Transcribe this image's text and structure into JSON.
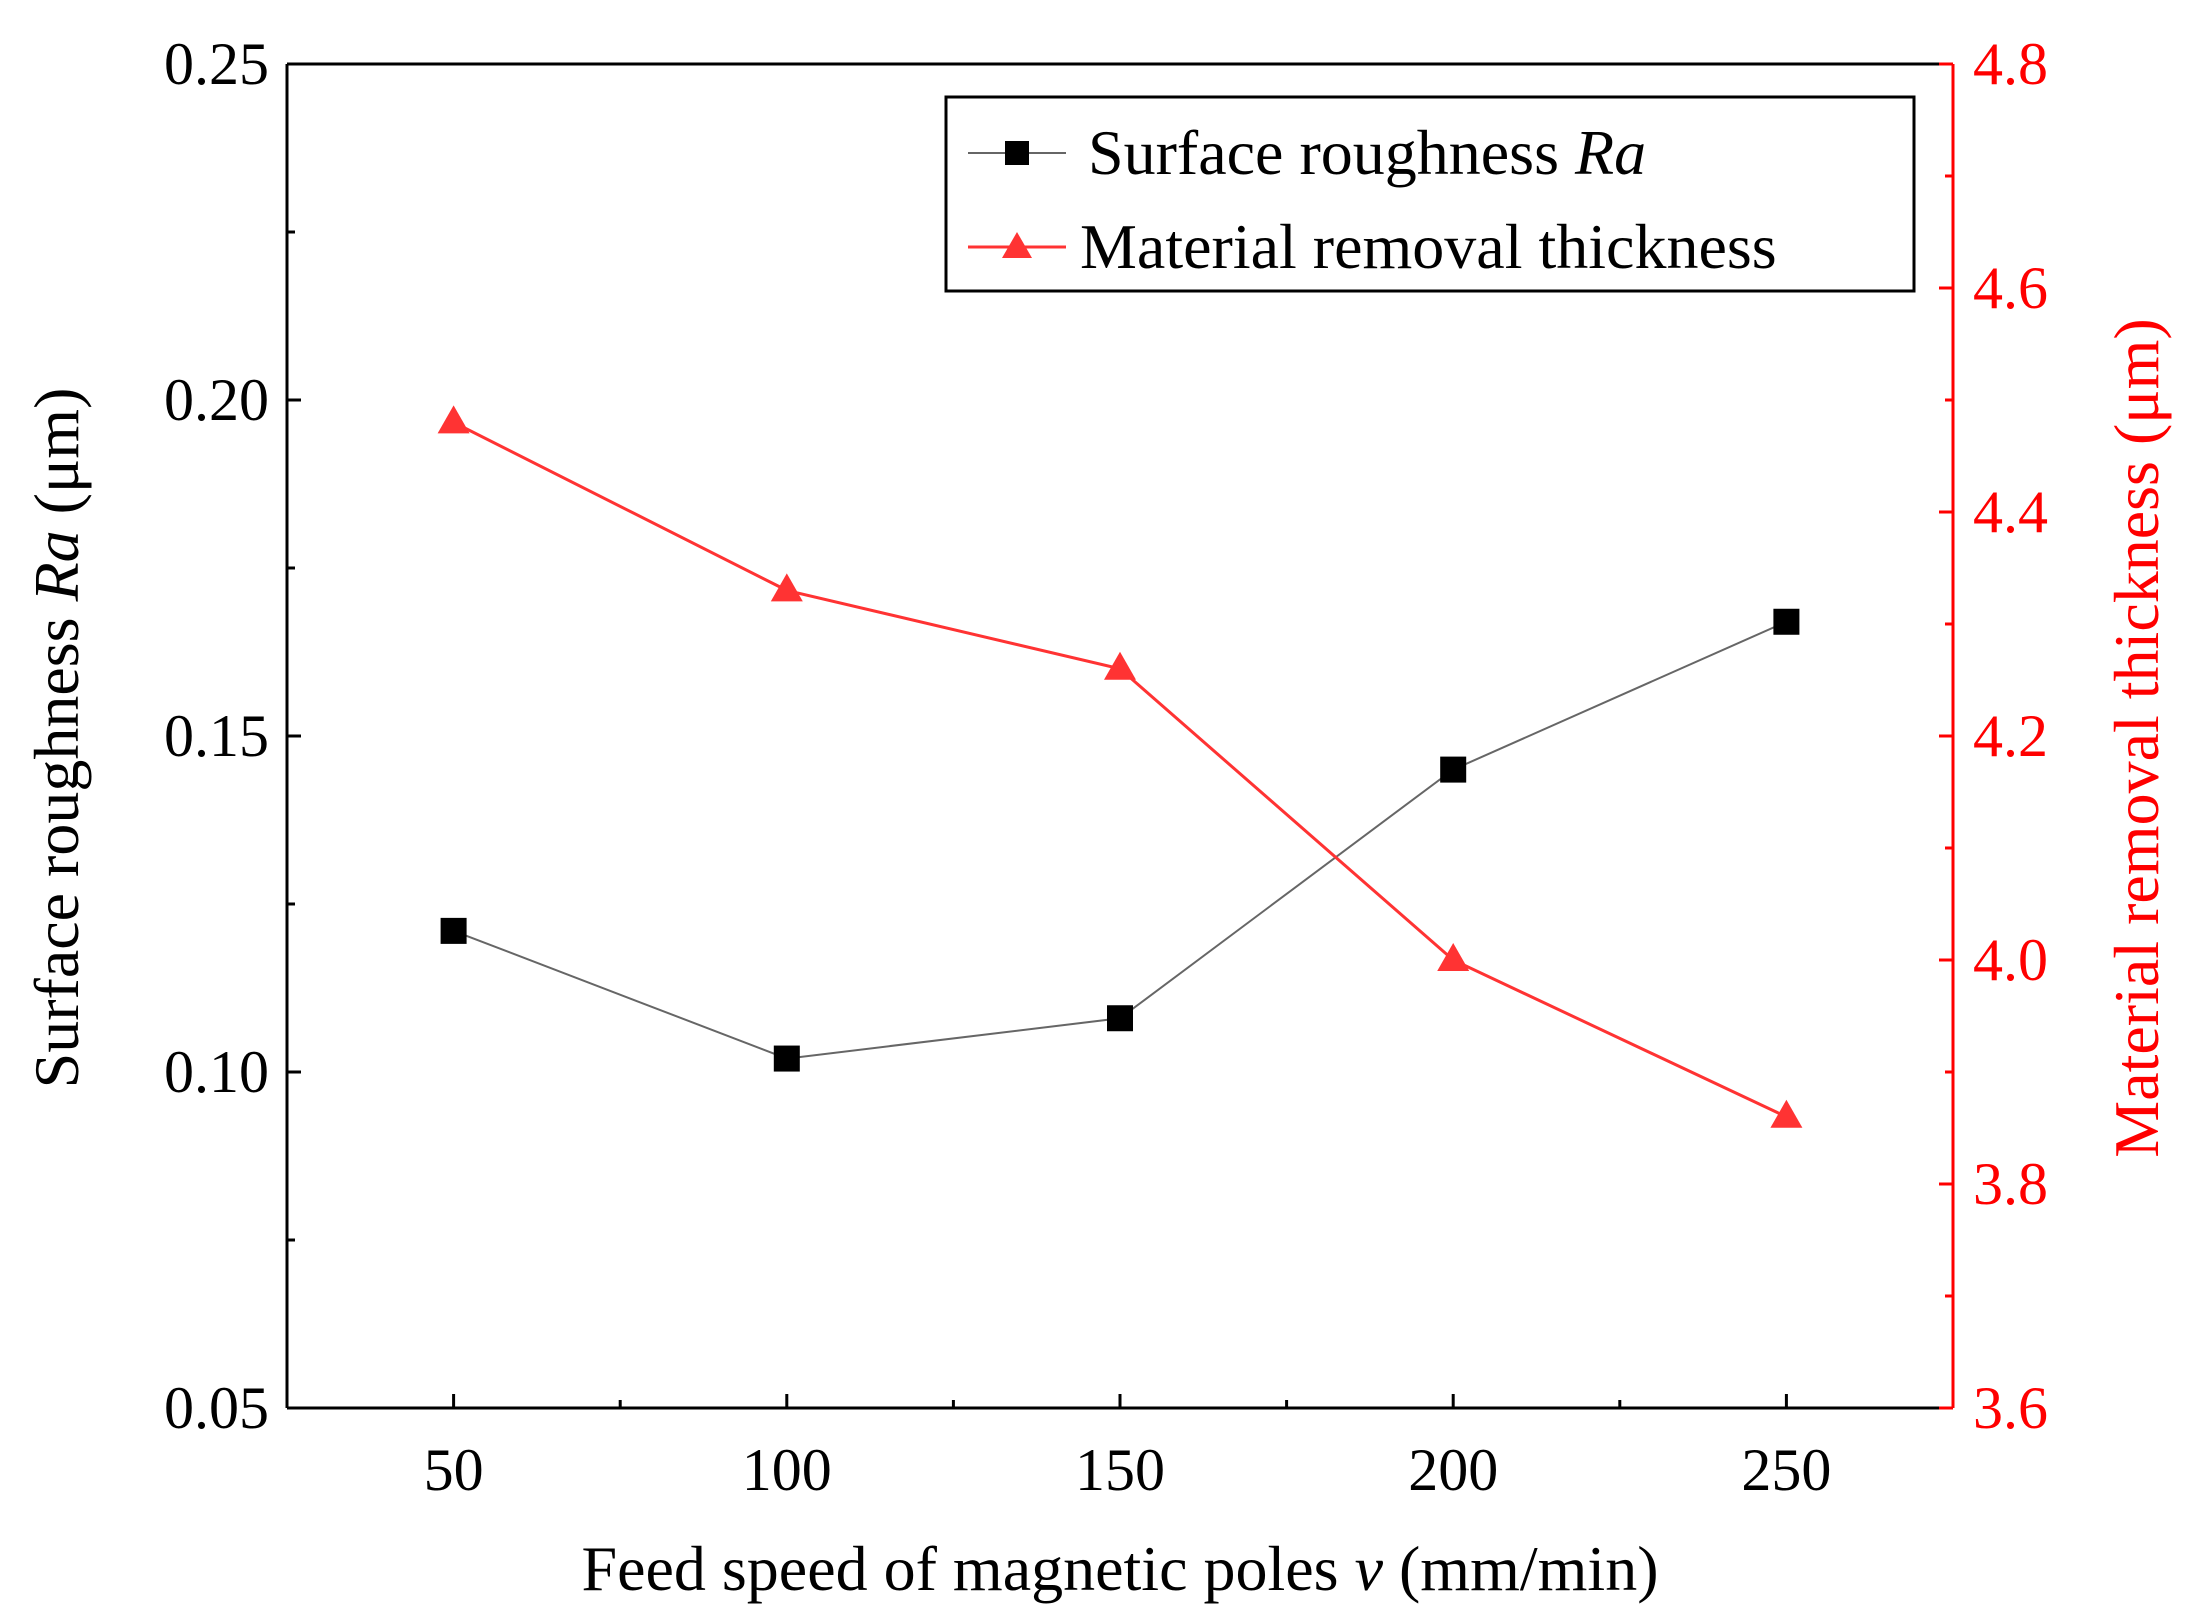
{
  "chart_data": {
    "type": "line",
    "title": "",
    "xlabel": "Feed speed of magnetic poles",
    "xlabel_var": "v",
    "xlabel_unit": "(mm/min)",
    "ylabel": "Surface roughness",
    "ylabel_var": "Ra",
    "ylabel_unit": "(μm)",
    "y2label": "Material removal thickness (μm)",
    "xlim": [
      25,
      275
    ],
    "ylim": [
      0.05,
      0.25
    ],
    "y2lim": [
      3.6,
      4.8
    ],
    "x": [
      50,
      100,
      150,
      200,
      250
    ],
    "xticks": [
      50,
      100,
      150,
      200,
      250
    ],
    "xtick_labels": [
      "50",
      "100",
      "150",
      "200",
      "250"
    ],
    "xminor": [
      75,
      125,
      175,
      225
    ],
    "yticks": [
      0.05,
      0.1,
      0.15,
      0.2,
      0.25
    ],
    "ytick_labels": [
      "0.05",
      "0.10",
      "0.15",
      "0.20",
      "0.25"
    ],
    "yminor": [
      0.075,
      0.125,
      0.175,
      0.225
    ],
    "y2ticks": [
      3.6,
      3.8,
      4.0,
      4.2,
      4.4,
      4.6,
      4.8
    ],
    "y2tick_labels": [
      "3.6",
      "3.8",
      "4.0",
      "4.2",
      "4.4",
      "4.6",
      "4.8"
    ],
    "y2minor": [
      3.7,
      3.9,
      4.1,
      4.3,
      4.5,
      4.7
    ],
    "legend_position": "top-right",
    "series": [
      {
        "name": "Surface roughness",
        "name_italic": "Ra",
        "axis": "left",
        "marker": "square",
        "color": "#000000",
        "line_color": "#666666",
        "values": [
          0.121,
          0.102,
          0.108,
          0.145,
          0.167
        ]
      },
      {
        "name": "Material removal thickness",
        "name_italic": "",
        "axis": "right",
        "marker": "triangle",
        "color": "#FF3333",
        "line_color": "#FF3333",
        "values": [
          4.48,
          4.33,
          4.26,
          4.0,
          3.86
        ]
      }
    ],
    "colors": {
      "axis": "#000000",
      "right_axis": "#FF0000"
    }
  }
}
